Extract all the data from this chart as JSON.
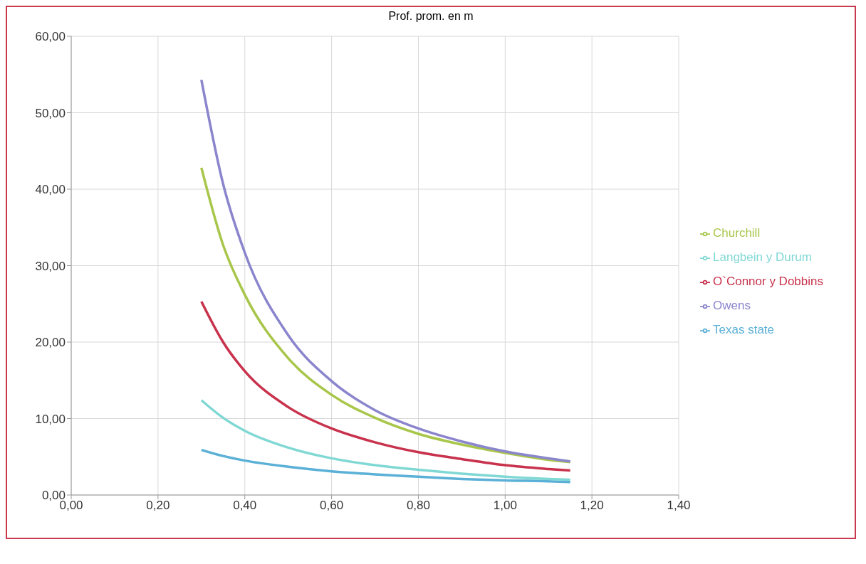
{
  "chart_data": {
    "type": "line",
    "title": "Prof. prom. en m",
    "x": [
      0.3,
      0.35,
      0.4,
      0.5,
      0.6,
      0.7,
      0.8,
      0.9,
      1.0,
      1.1,
      1.15
    ],
    "series": [
      {
        "name": "Texas state",
        "color": "#5ab0d6",
        "values": [
          5.9,
          5.1,
          4.5,
          3.7,
          3.1,
          2.7,
          2.4,
          2.1,
          1.9,
          1.8,
          1.7
        ]
      },
      {
        "name": "O`Connor  y Dobbins",
        "color": "#c8324c",
        "values": [
          25.3,
          20.0,
          16.2,
          11.5,
          8.7,
          6.9,
          5.6,
          4.7,
          3.9,
          3.4,
          3.2
        ]
      },
      {
        "name": "Churchill",
        "color": "#a8c64a",
        "values": [
          42.8,
          32.7,
          26.2,
          17.9,
          13.1,
          10.1,
          8.0,
          6.6,
          5.5,
          4.6,
          4.3
        ]
      },
      {
        "name": "Owens",
        "color": "#8a85cc",
        "values": [
          54.3,
          40.7,
          31.7,
          20.9,
          14.9,
          11.1,
          8.7,
          7.0,
          5.7,
          4.8,
          4.4
        ]
      },
      {
        "name": "Langbein y Durum",
        "color": "#80d8d4",
        "values": [
          12.4,
          10.1,
          8.4,
          6.2,
          4.8,
          3.9,
          3.3,
          2.8,
          2.4,
          2.1,
          2.0
        ]
      }
    ],
    "xlim": [
      0,
      1.4
    ],
    "xticks": [
      {
        "value": 0,
        "label": "0,00"
      },
      {
        "value": 0.2,
        "label": "0,20"
      },
      {
        "value": 0.4,
        "label": "0,40"
      },
      {
        "value": 0.6,
        "label": "0,60"
      },
      {
        "value": 0.8,
        "label": "0,80"
      },
      {
        "value": 1.0,
        "label": "1,00"
      },
      {
        "value": 1.2,
        "label": "1,20"
      },
      {
        "value": 1.4,
        "label": "1,40"
      }
    ],
    "ylim": [
      0,
      60
    ],
    "yticks": [
      {
        "value": 0,
        "label": "0,00"
      },
      {
        "value": 10,
        "label": "10,00"
      },
      {
        "value": 20,
        "label": "20,00"
      },
      {
        "value": 30,
        "label": "30,00"
      },
      {
        "value": 40,
        "label": "40,00"
      },
      {
        "value": 50,
        "label": "50,00"
      },
      {
        "value": 60,
        "label": "60,00"
      }
    ],
    "grid": true,
    "legend": "right",
    "marker": "none",
    "line_style": "solid"
  }
}
